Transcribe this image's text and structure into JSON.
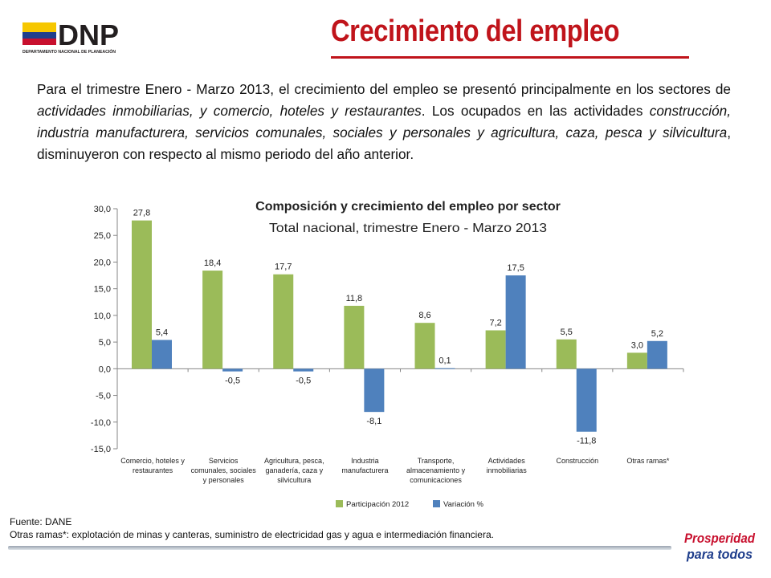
{
  "header": {
    "logo_text": "DNP",
    "logo_subtitle": "DEPARTAMENTO NACIONAL DE PLANEACIÓN",
    "title": "Crecimiento del empleo"
  },
  "intro": {
    "s1": "Para el trimestre Enero - Marzo 2013, el crecimiento del empleo se presentó principalmente en los sectores de ",
    "s2": "actividades inmobiliarias, y comercio, hoteles y restaurantes",
    "s3": ". Los ocupados en las actividades ",
    "s4": "construcción, industria manufacturera, servicios comunales, sociales y personales y agricultura, caza, pesca y silvicultura",
    "s5": ", disminuyeron con respecto al mismo periodo del año anterior."
  },
  "chart_data": {
    "type": "bar",
    "title": "Composición y crecimiento del empleo por sector",
    "subtitle": "Total nacional, trimestre Enero -  Marzo 2013",
    "categories": [
      [
        "Comercio, hoteles y",
        "restaurantes"
      ],
      [
        "Servicios",
        "comunales, sociales",
        "y personales"
      ],
      [
        "Agricultura, pesca,",
        "ganadería, caza y",
        "silvicultura"
      ],
      [
        "Industria",
        "manufacturera"
      ],
      [
        "Transporte,",
        "almacenamiento y",
        "comunicaciones"
      ],
      [
        "Actividades",
        "inmobiliarias"
      ],
      [
        "Construcción"
      ],
      [
        "Otras ramas*"
      ]
    ],
    "series": [
      {
        "name": "Participación 2012",
        "color": "#9bbb59",
        "values": [
          27.8,
          18.4,
          17.7,
          11.8,
          8.6,
          7.2,
          5.5,
          3.0
        ],
        "labels": [
          "27,8",
          "18,4",
          "17,7",
          "11,8",
          "8,6",
          "7,2",
          "5,5",
          "3,0"
        ]
      },
      {
        "name": "Variación %",
        "color": "#4f81bd",
        "values": [
          5.4,
          -0.5,
          -0.5,
          -8.1,
          0.1,
          17.5,
          -11.8,
          5.2
        ],
        "labels": [
          "5,4",
          "-0,5",
          "-0,5",
          "-8,1",
          "0,1",
          "17,5",
          "-11,8",
          "5,2"
        ]
      }
    ],
    "ylim": [
      -15,
      30
    ],
    "yticks": [
      30,
      25,
      20,
      15,
      10,
      5,
      0,
      -5,
      -10,
      -15
    ],
    "ytick_labels": [
      "30,0",
      "25,0",
      "20,0",
      "15,0",
      "10,0",
      "5,0",
      "0,0",
      "-5,0",
      "-10,0",
      "-15,0"
    ],
    "grid": false,
    "legend": "bottom"
  },
  "footer": {
    "source": "Fuente: DANE",
    "note": "Otras ramas*:  explotación de minas y canteras, suministro de electricidad gas y agua e intermediación financiera.",
    "badge_line1": "Prosperidad",
    "badge_line2": "para todos"
  }
}
